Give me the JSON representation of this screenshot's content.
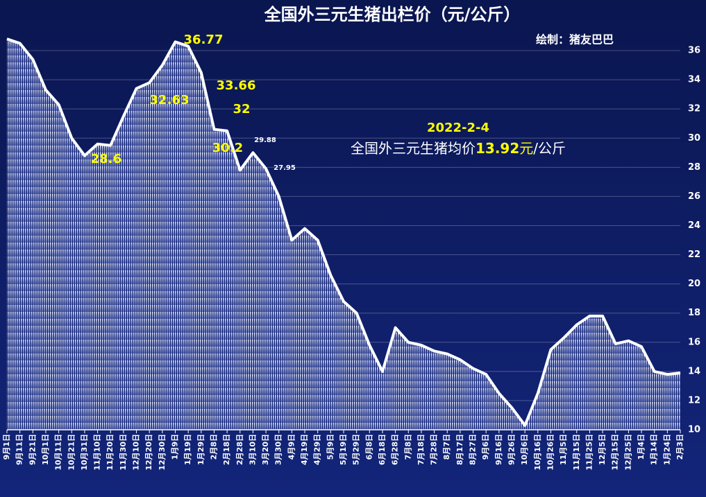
{
  "chart_data": {
    "type": "area",
    "title": "全国外三元生猪出栏价（元/公斤）",
    "credit": "绘制：猪友巴巴",
    "categories": [
      "9月1日",
      "9月11日",
      "9月21日",
      "10月1日",
      "10月11日",
      "10月21日",
      "10月31日",
      "11月10日",
      "11月20日",
      "11月30日",
      "12月10日",
      "12月20日",
      "12月30日",
      "1月9日",
      "1月19日",
      "1月29日",
      "2月8日",
      "2月18日",
      "2月28日",
      "3月10日",
      "3月20日",
      "3月30日",
      "4月9日",
      "4月19日",
      "4月29日",
      "5月9日",
      "5月19日",
      "5月29日",
      "6月8日",
      "6月18日",
      "6月28日",
      "7月8日",
      "7月18日",
      "7月28日",
      "8月7日",
      "8月17日",
      "8月27日",
      "9月6日",
      "9月16日",
      "9月26日",
      "10月6日",
      "10月16日",
      "10月26日",
      "11月5日",
      "11月15日",
      "11月25日",
      "12月5日",
      "12月15日",
      "12月25日",
      "1月4日",
      "1月14日",
      "1月24日",
      "2月3日"
    ],
    "values": [
      36.8,
      36.5,
      35.4,
      33.3,
      32.3,
      30.0,
      28.8,
      29.6,
      29.5,
      31.5,
      33.4,
      33.8,
      35.0,
      36.6,
      36.3,
      34.5,
      30.6,
      30.5,
      27.8,
      29.0,
      27.9,
      26.0,
      23.0,
      23.8,
      23.0,
      20.6,
      18.8,
      18.0,
      15.8,
      14.0,
      17.0,
      16.0,
      15.8,
      15.4,
      15.2,
      14.8,
      14.2,
      13.8,
      12.5,
      11.5,
      10.3,
      12.5,
      15.5,
      16.3,
      17.2,
      17.8,
      17.8,
      15.9,
      16.1,
      15.7,
      14.0,
      13.8,
      13.9
    ],
    "color": "#ffffff",
    "ylim": [
      10,
      37
    ],
    "yticks": [
      10,
      12,
      14,
      16,
      18,
      20,
      22,
      24,
      26,
      28,
      30,
      32,
      34,
      36
    ],
    "grid": true,
    "annotations": [
      "36.77",
      "32.63",
      "33.66",
      "32",
      "28.6",
      "30.2",
      "29.88",
      "27.95"
    ],
    "note": {
      "date": "2022-2-4",
      "text": "全国外三元生猪均价",
      "price": "13.92",
      "unit": "元",
      "per": "/公斤"
    }
  }
}
